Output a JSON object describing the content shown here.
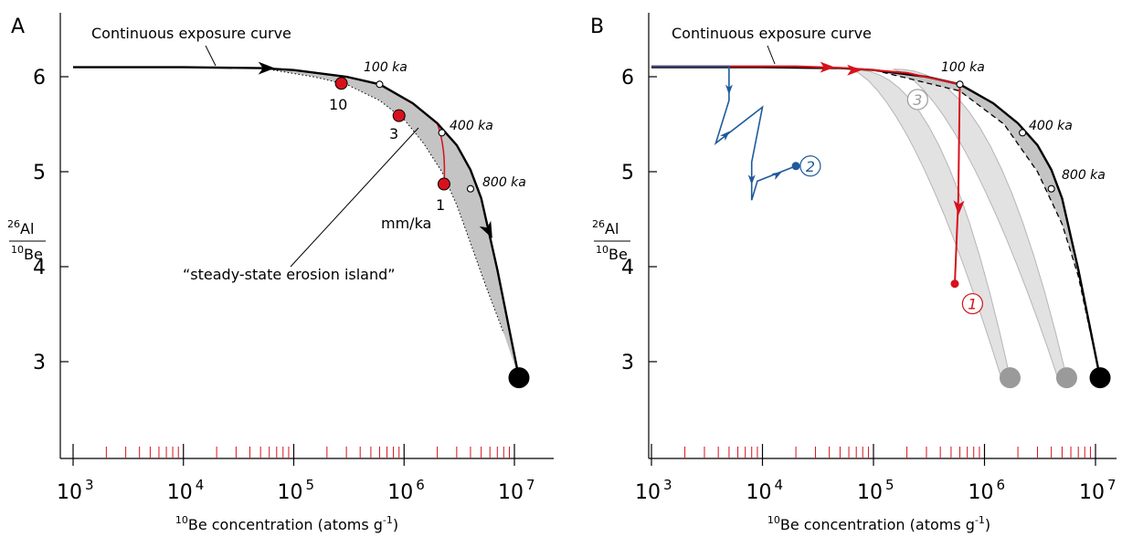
{
  "chart_data": [
    {
      "type": "line",
      "panel_label": "A",
      "title": "",
      "xlabel_sup": "10",
      "xlabel_main": "Be concentration (atoms g",
      "xlabel_exp": "-1",
      "xlabel_close": ")",
      "ylabel_num_sup": "26",
      "ylabel_num": "Al",
      "ylabel_den_sup": "10",
      "ylabel_den": "Be",
      "xscale": "log",
      "xlim": [
        1000,
        15000000
      ],
      "ylim": [
        2.0,
        6.7
      ],
      "x_ticks": [
        {
          "value": 1000,
          "base": "10",
          "exp": "3"
        },
        {
          "value": 10000,
          "base": "10",
          "exp": "4"
        },
        {
          "value": 100000,
          "base": "10",
          "exp": "5"
        },
        {
          "value": 1000000,
          "base": "10",
          "exp": "6"
        },
        {
          "value": 10000000,
          "base": "10",
          "exp": "7"
        }
      ],
      "y_ticks": [
        {
          "value": 3,
          "label": "3"
        },
        {
          "value": 4,
          "label": "4"
        },
        {
          "value": 5,
          "label": "5"
        },
        {
          "value": 6,
          "label": "6"
        }
      ],
      "series": [
        {
          "name": "Continuous exposure curve",
          "x": [
            1000,
            10000,
            50000,
            100000,
            300000,
            600000,
            1200000,
            2000000,
            3000000,
            4000000,
            5000000,
            7000000,
            11000000
          ],
          "y": [
            6.1,
            6.1,
            6.09,
            6.07,
            6.0,
            5.92,
            5.72,
            5.51,
            5.28,
            5.02,
            4.72,
            3.97,
            2.83
          ]
        },
        {
          "name": "steady-state erosion island",
          "x": [
            65000,
            150000,
            300000,
            600000,
            1000000,
            1500000,
            2200000,
            3000000,
            4000000,
            5500000,
            8000000
          ],
          "y": [
            6.07,
            6.0,
            5.92,
            5.75,
            5.55,
            5.3,
            5.0,
            4.65,
            4.25,
            3.8,
            3.3
          ]
        }
      ],
      "time_markers": [
        {
          "label": "100 ka",
          "x": 600000,
          "y": 5.92
        },
        {
          "label": "400 ka",
          "x": 2200000,
          "y": 5.41
        },
        {
          "label": "800 ka",
          "x": 4000000,
          "y": 4.82
        }
      ],
      "erosion_points": [
        {
          "label": "10",
          "x": 270000,
          "y": 5.93
        },
        {
          "label": "3",
          "x": 900000,
          "y": 5.59
        },
        {
          "label": "1",
          "x": 2300000,
          "y": 4.87
        }
      ],
      "erosion_unit": "mm/ka",
      "endpoints": [
        {
          "x": 11000000,
          "y": 2.83,
          "color": "#000000"
        }
      ],
      "annotations": [
        "Continuous exposure curve",
        "“steady-state erosion island”"
      ],
      "colors": {
        "island": "#c4c4c4",
        "points": "#d7111b",
        "curve": "#000000"
      }
    },
    {
      "type": "line",
      "panel_label": "B",
      "title": "",
      "xlabel_sup": "10",
      "xlabel_main": "Be concentration (atoms g",
      "xlabel_exp": "-1",
      "xlabel_close": ")",
      "ylabel_num_sup": "26",
      "ylabel_num": "Al",
      "ylabel_den_sup": "10",
      "ylabel_den": "Be",
      "xscale": "log",
      "xlim": [
        1000,
        15000000
      ],
      "ylim": [
        2.0,
        6.7
      ],
      "x_ticks": [
        {
          "value": 1000,
          "base": "10",
          "exp": "3"
        },
        {
          "value": 10000,
          "base": "10",
          "exp": "4"
        },
        {
          "value": 100000,
          "base": "10",
          "exp": "5"
        },
        {
          "value": 1000000,
          "base": "10",
          "exp": "6"
        },
        {
          "value": 10000000,
          "base": "10",
          "exp": "7"
        }
      ],
      "y_ticks": [
        {
          "value": 3,
          "label": "3"
        },
        {
          "value": 4,
          "label": "4"
        },
        {
          "value": 5,
          "label": "5"
        },
        {
          "value": 6,
          "label": "6"
        }
      ],
      "series": [
        {
          "name": "Continuous exposure curve",
          "x": [
            1000,
            10000,
            50000,
            100000,
            300000,
            600000,
            1200000,
            2000000,
            3000000,
            4000000,
            5000000,
            7000000,
            11000000
          ],
          "y": [
            6.1,
            6.1,
            6.09,
            6.07,
            6.0,
            5.92,
            5.72,
            5.51,
            5.28,
            5.02,
            4.72,
            3.97,
            2.83
          ]
        },
        {
          "name": "path 1",
          "x": [
            1000,
            20000,
            60000,
            200000,
            600000,
            580000,
            540000
          ],
          "y": [
            6.11,
            6.11,
            6.09,
            6.04,
            5.92,
            4.7,
            3.82
          ]
        },
        {
          "name": "path 2",
          "x": [
            1000,
            5000,
            5000,
            3800,
            10000,
            8000,
            8000,
            9000,
            20000
          ],
          "y": [
            6.11,
            6.11,
            5.75,
            5.3,
            5.68,
            5.1,
            4.7,
            4.9,
            5.06
          ]
        }
      ],
      "time_markers": [
        {
          "label": "100 ka",
          "x": 600000,
          "y": 5.92
        },
        {
          "label": "400 ka",
          "x": 2200000,
          "y": 5.41
        },
        {
          "label": "800 ka",
          "x": 4000000,
          "y": 4.82
        }
      ],
      "path_labels": [
        {
          "label": "1",
          "x": 780000,
          "y": 3.61,
          "color": "#d7111b"
        },
        {
          "label": "2",
          "x": 27000,
          "y": 5.06,
          "color": "#1f5a9b"
        },
        {
          "label": "3",
          "x": 250000,
          "y": 5.76,
          "color": "#9a9a9a"
        }
      ],
      "endpoints": [
        {
          "x": 1700000,
          "y": 2.83,
          "color": "#9a9a9a"
        },
        {
          "x": 5500000,
          "y": 2.83,
          "color": "#9a9a9a"
        },
        {
          "x": 11000000,
          "y": 2.83,
          "color": "#000000"
        }
      ],
      "annotations": [
        "Continuous exposure curve"
      ],
      "colors": {
        "island": "#c4c4c4",
        "island_light": "#e2e2e2",
        "path1": "#d7111b",
        "path2": "#1f5a9b",
        "path3": "#9a9a9a",
        "curve": "#000000"
      }
    }
  ]
}
